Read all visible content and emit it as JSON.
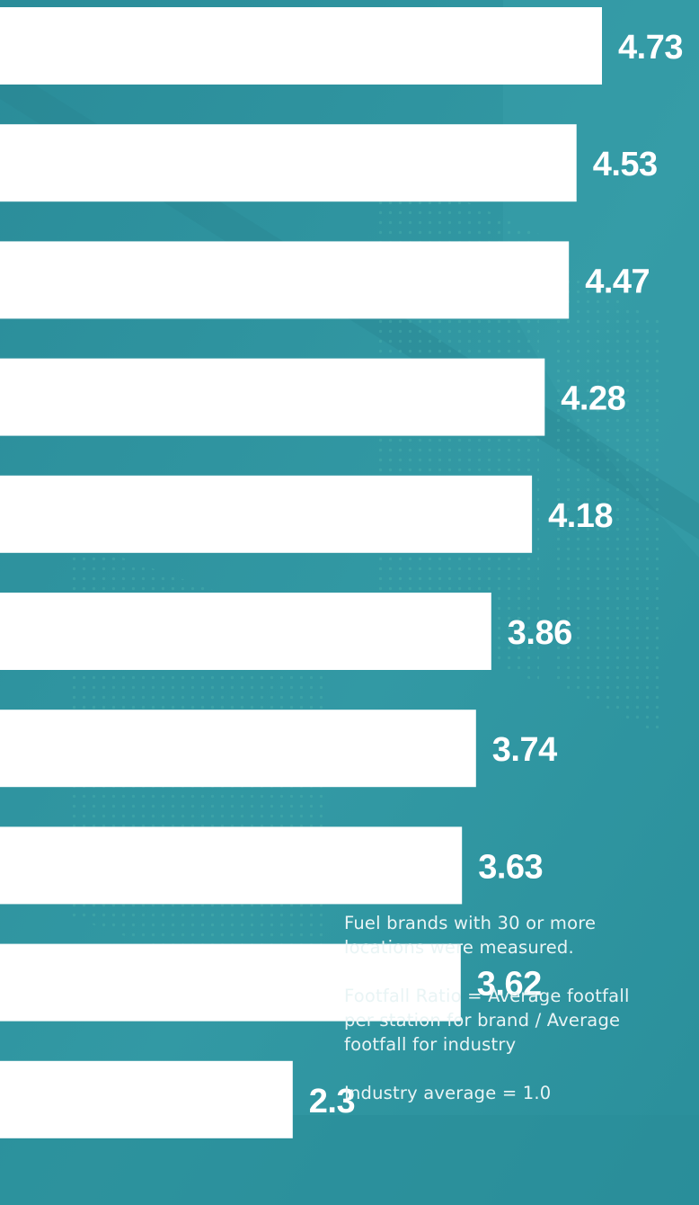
{
  "chart_data": {
    "type": "bar",
    "orientation": "horizontal",
    "title": "",
    "xlabel": "",
    "ylabel": "",
    "values": [
      4.73,
      4.53,
      4.47,
      4.28,
      4.18,
      3.86,
      3.74,
      3.63,
      3.62,
      2.3
    ],
    "value_labels": [
      "4.73",
      "4.53",
      "4.47",
      "4.28",
      "4.18",
      "3.86",
      "3.74",
      "3.63",
      "3.62",
      "2.3"
    ],
    "grid": false,
    "legend": "none"
  },
  "notes": {
    "brands_measured": "Fuel brands with 30 or more\nlocations were measured.",
    "ratio_definition": "Footfall Ratio = Average footfall\nper station for brand / Average\nfootfall for industry",
    "industry_average": "Industry average = 1.0"
  },
  "colors": {
    "background": "#2f95a1",
    "bar": "#ffffff",
    "text": "#ffffff"
  }
}
